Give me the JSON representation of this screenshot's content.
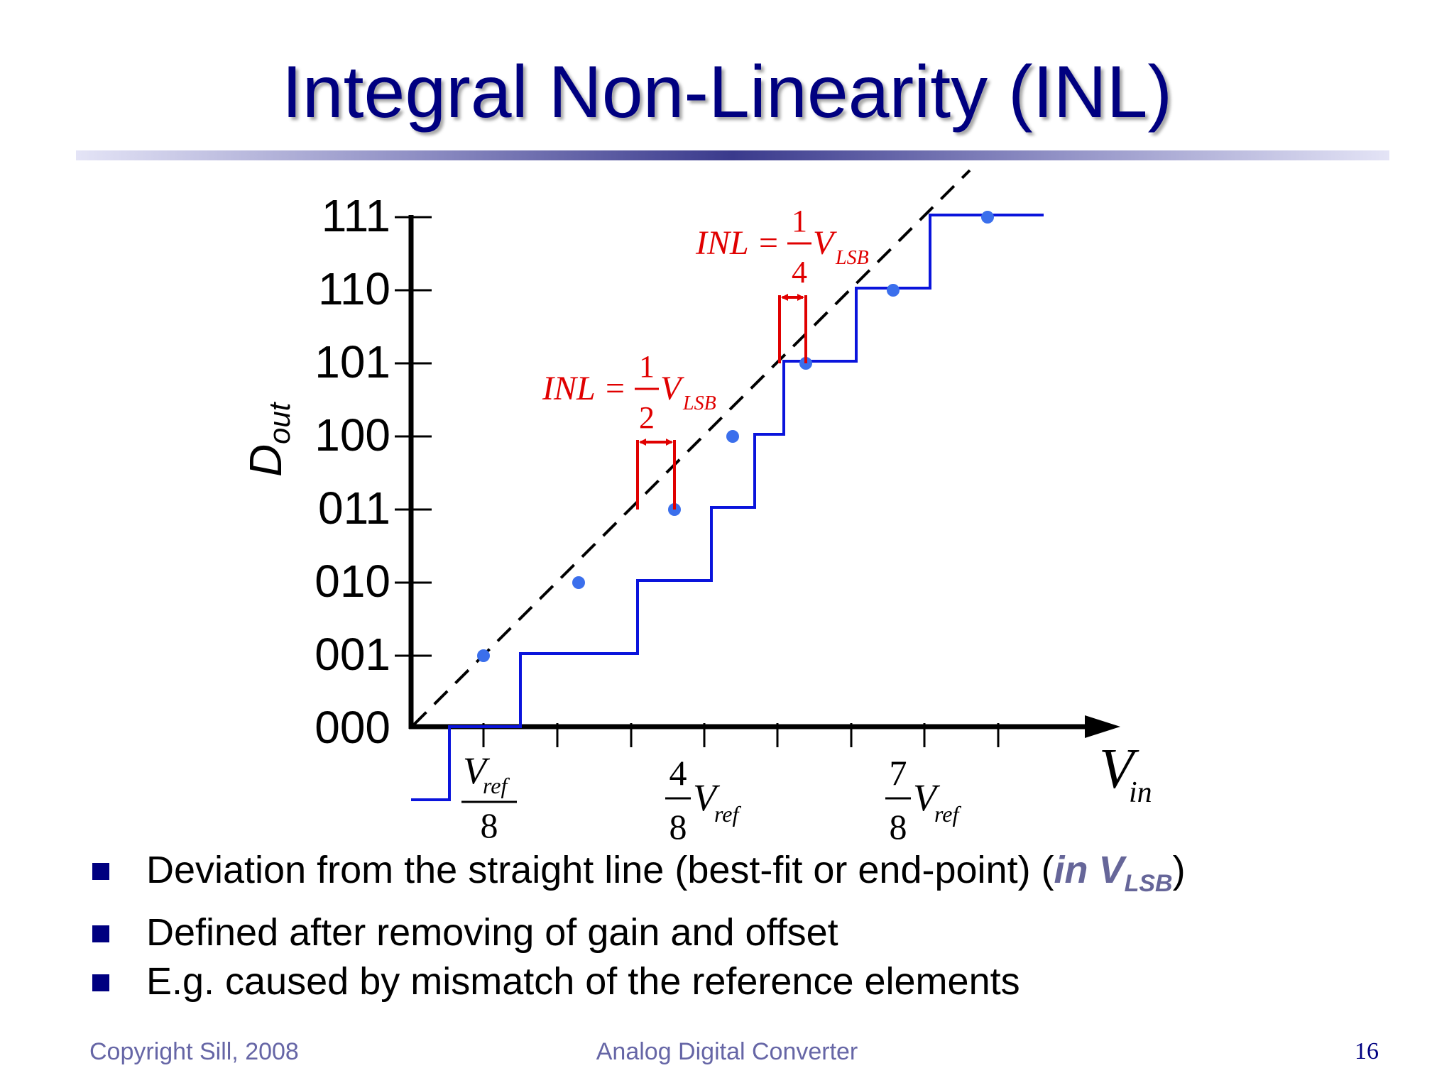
{
  "slide": {
    "title": "Integral Non-Linearity (INL)",
    "footer_left": "Copyright Sill, 2008",
    "footer_center": "Analog Digital Converter",
    "page_number": "16"
  },
  "diagram": {
    "y_axis_title": {
      "main": "D",
      "sub": "out"
    },
    "x_axis_title": {
      "main": "V",
      "sub": "in"
    },
    "y_tick_labels": [
      "000",
      "001",
      "010",
      "011",
      "100",
      "101",
      "110",
      "111"
    ],
    "x_tick_labels": {
      "first": {
        "main": "V",
        "sub": "ref",
        "den": "8"
      },
      "fourth": {
        "num": "4",
        "den": "8",
        "main": "V",
        "sub": "ref"
      },
      "seventh": {
        "num": "7",
        "den": "8",
        "main": "V",
        "sub": "ref"
      }
    },
    "annotations": [
      {
        "lhs": "INL =",
        "num": "1",
        "den": "2",
        "v": "V",
        "sub": "LSB"
      },
      {
        "lhs": "INL =",
        "num": "1",
        "den": "4",
        "v": "V",
        "sub": "LSB"
      }
    ],
    "colors": {
      "transfer": "#0a14dc",
      "midpoint": "#3b6fec",
      "inl": "#e00000",
      "axis": "#000000",
      "ideal": "#000000"
    }
  },
  "bullets": [
    {
      "text": "Deviation from the straight line (best-fit or end-point) (",
      "hl": "in V",
      "hl_sub": "LSB",
      "tail": ")"
    },
    {
      "text": "Defined after removing of gain and offset"
    },
    {
      "text": "E.g. caused by mismatch of the reference elements"
    }
  ]
}
